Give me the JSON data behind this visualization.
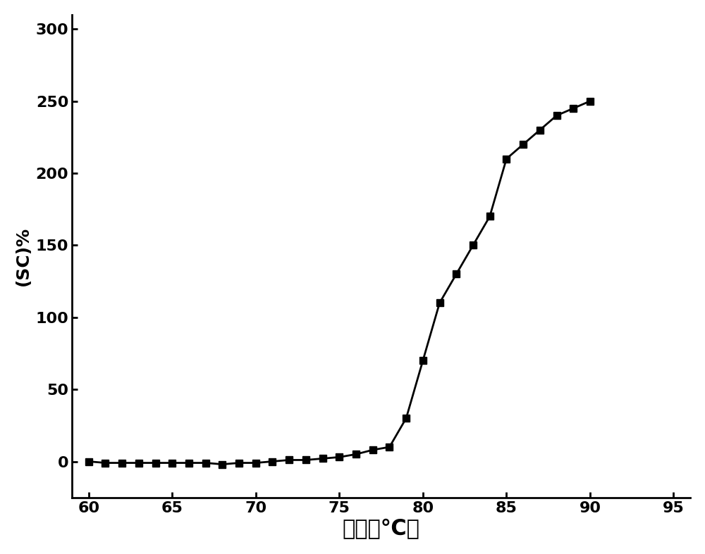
{
  "x": [
    60,
    61,
    62,
    63,
    64,
    65,
    66,
    67,
    68,
    69,
    70,
    71,
    72,
    73,
    74,
    75,
    76,
    77,
    78,
    79,
    80,
    81,
    82,
    83,
    84,
    85,
    86,
    87,
    88,
    89,
    90
  ],
  "y": [
    0,
    -1,
    -1,
    -1,
    -1,
    -1,
    -1,
    -1,
    -2,
    -1,
    -1,
    0,
    1,
    1,
    2,
    3,
    5,
    8,
    10,
    30,
    70,
    110,
    130,
    150,
    170,
    210,
    220,
    230,
    240,
    245,
    250
  ],
  "xlabel": "温度（℃）",
  "ylabel": "(SC)%",
  "xlim": [
    59,
    96
  ],
  "ylim": [
    -25,
    310
  ],
  "xticks": [
    60,
    65,
    70,
    75,
    80,
    85,
    90,
    95
  ],
  "yticks": [
    0,
    50,
    100,
    150,
    200,
    250,
    300
  ],
  "line_color": "#000000",
  "marker": "s",
  "marker_size": 7,
  "line_width": 2.0,
  "background_color": "#ffffff",
  "xlabel_fontsize": 22,
  "ylabel_fontsize": 18,
  "tick_fontsize": 16
}
